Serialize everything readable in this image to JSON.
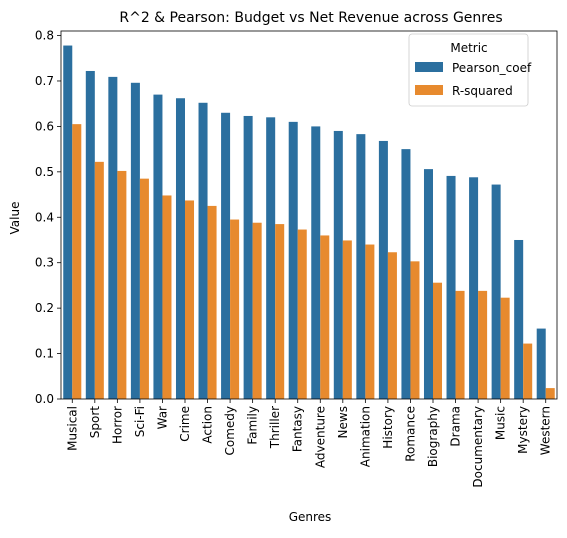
{
  "chart_data": {
    "type": "bar",
    "title": "R^2 & Pearson: Budget vs Net Revenue across Genres",
    "xlabel": "Genres",
    "ylabel": "Value",
    "ylim": [
      0,
      0.81
    ],
    "yticks": [
      "0.0",
      "0.1",
      "0.2",
      "0.3",
      "0.4",
      "0.5",
      "0.6",
      "0.7",
      "0.8"
    ],
    "grid": false,
    "legend": {
      "title": "Metric",
      "position": "top-right"
    },
    "categories": [
      "Musical",
      "Sport",
      "Horror",
      "Sci-Fi",
      "War",
      "Crime",
      "Action",
      "Comedy",
      "Family",
      "Thriller",
      "Fantasy",
      "Adventure",
      "News",
      "Animation",
      "History",
      "Romance",
      "Biography",
      "Drama",
      "Documentary",
      "Music",
      "Mystery",
      "Western"
    ],
    "series": [
      {
        "name": "Pearson_coef",
        "color": "#2b6f9f",
        "values": [
          0.778,
          0.722,
          0.709,
          0.696,
          0.67,
          0.662,
          0.652,
          0.63,
          0.623,
          0.62,
          0.61,
          0.6,
          0.59,
          0.583,
          0.568,
          0.55,
          0.506,
          0.491,
          0.488,
          0.472,
          0.35,
          0.155
        ]
      },
      {
        "name": "R-squared",
        "color": "#e78a2e",
        "values": [
          0.605,
          0.522,
          0.502,
          0.485,
          0.448,
          0.437,
          0.425,
          0.395,
          0.388,
          0.385,
          0.373,
          0.36,
          0.349,
          0.34,
          0.323,
          0.303,
          0.256,
          0.238,
          0.238,
          0.223,
          0.122,
          0.024
        ]
      }
    ]
  }
}
